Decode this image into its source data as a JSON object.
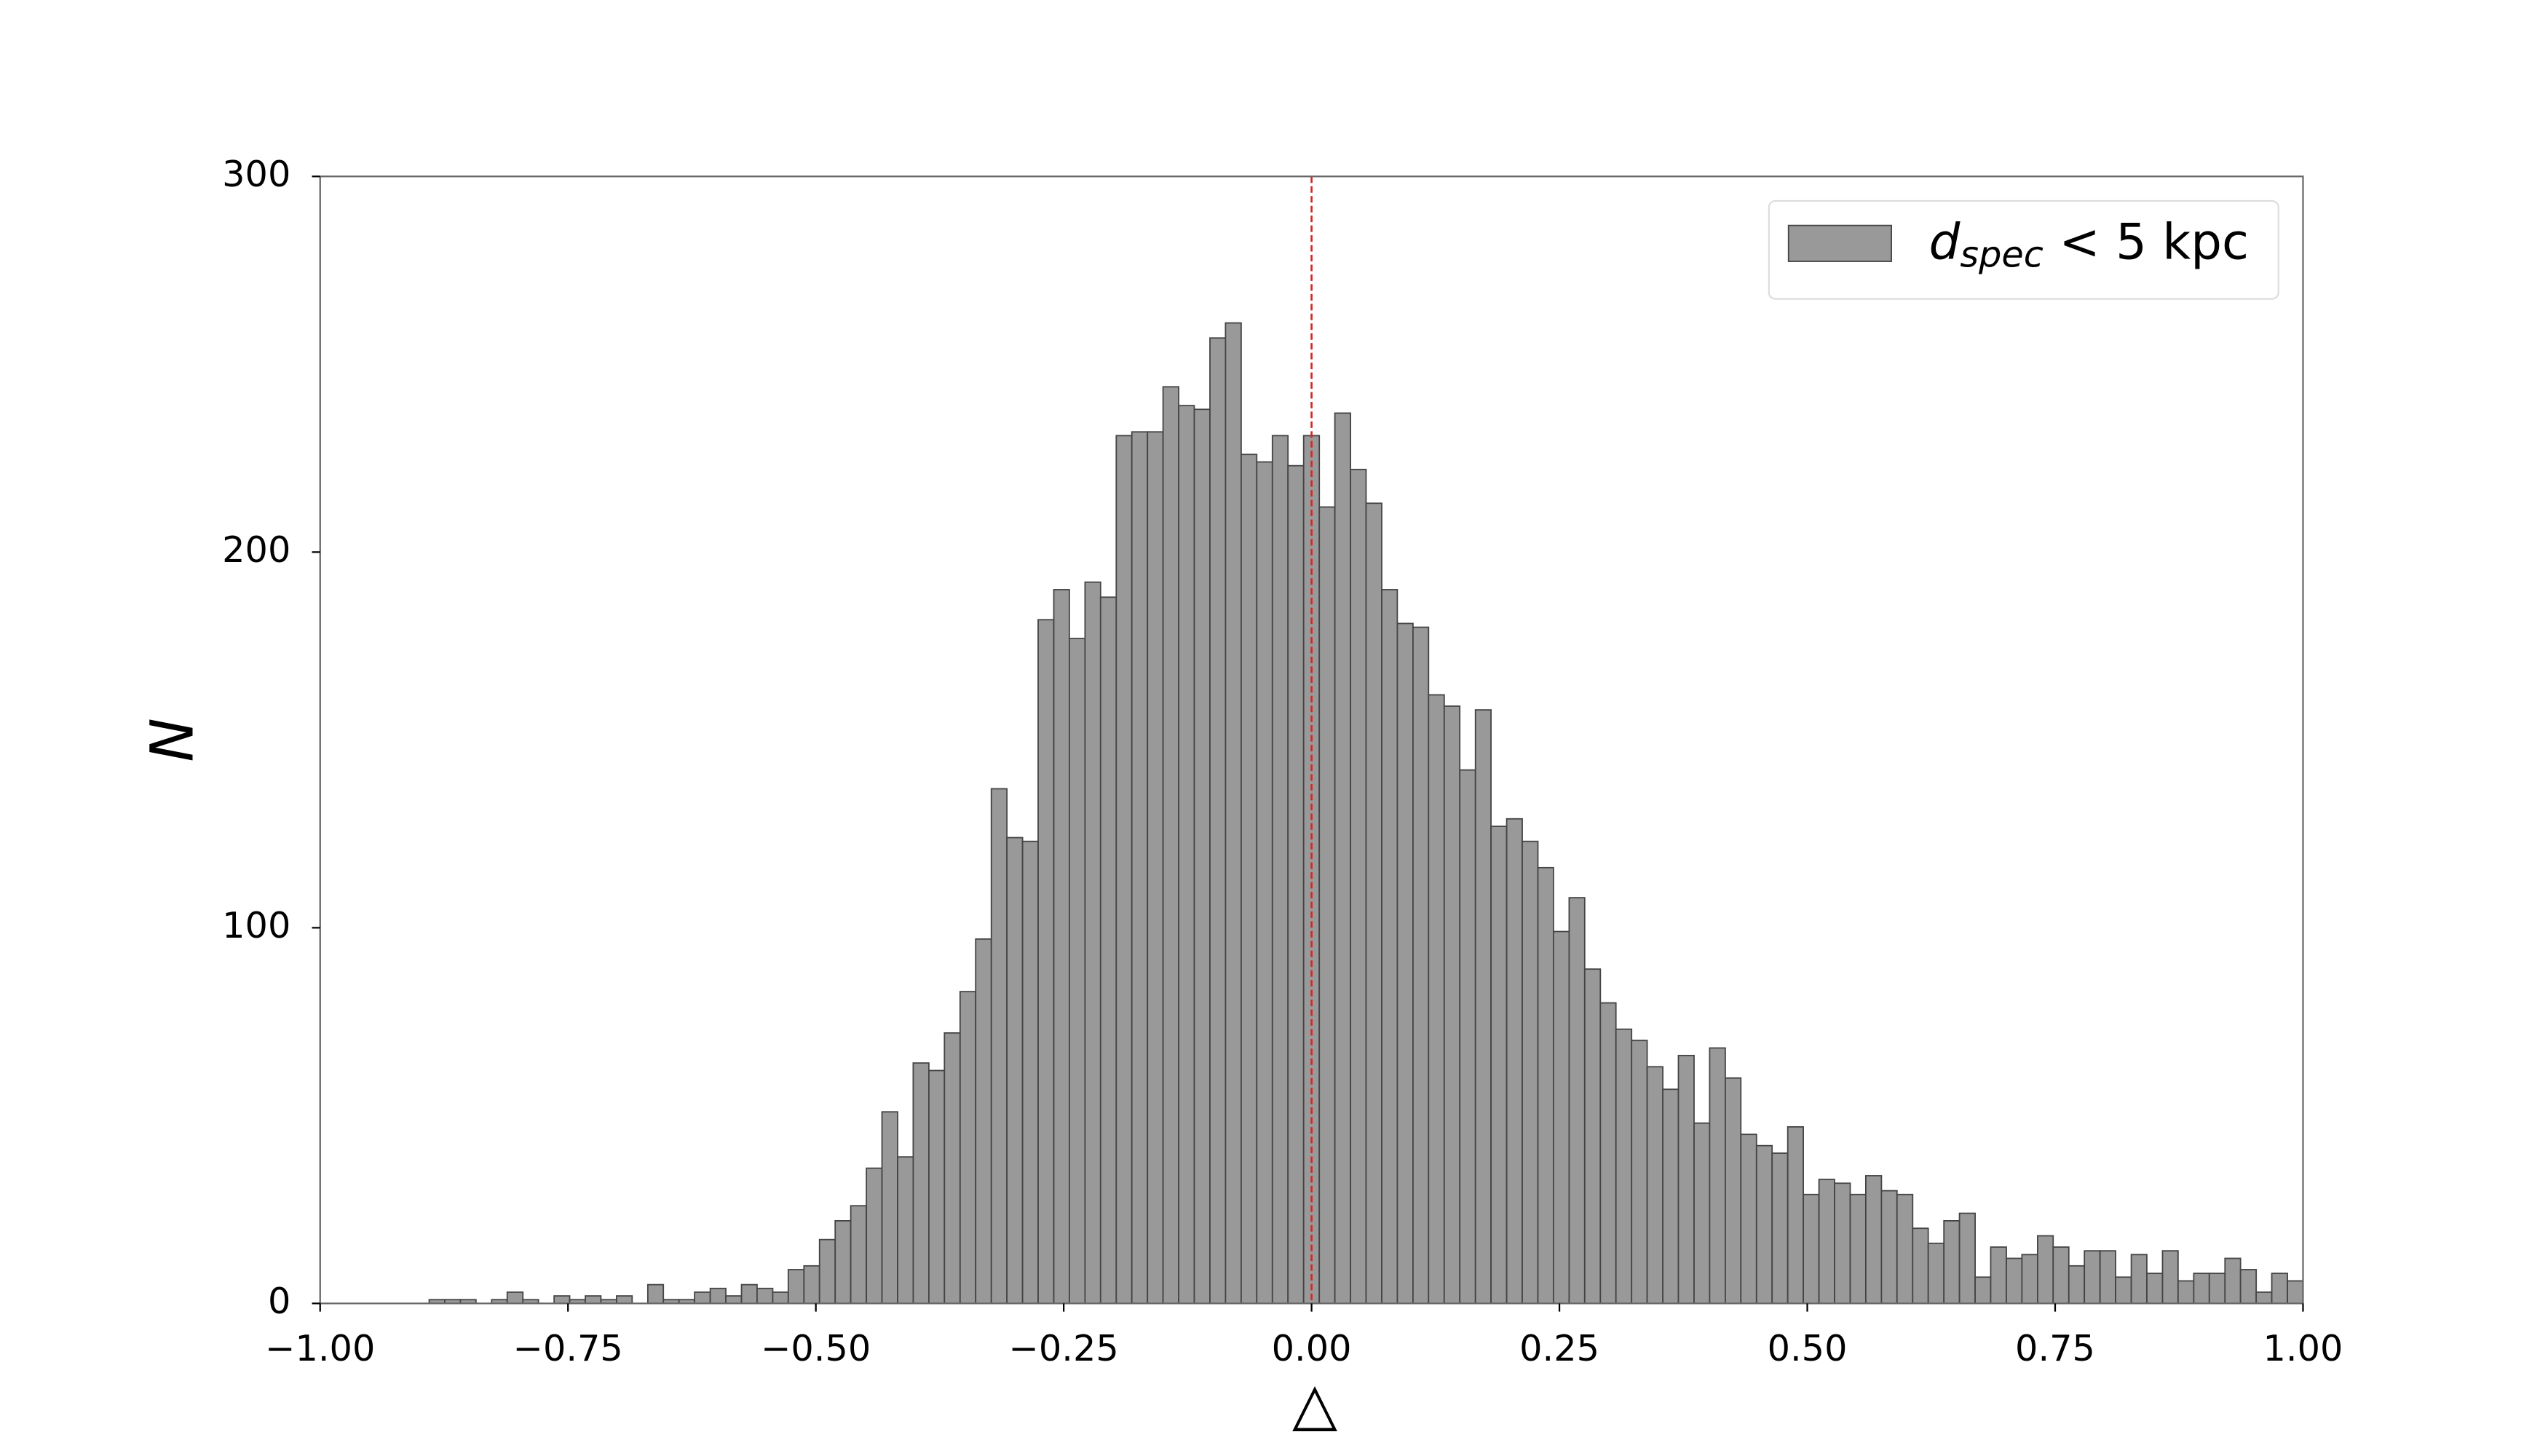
{
  "chart_data": {
    "type": "histogram",
    "x_label": "△",
    "y_label": "N",
    "bins": [
      -0.89,
      -0.8743,
      -0.8585,
      -0.8428,
      -0.827,
      -0.8113,
      -0.7955,
      -0.7798,
      -0.764,
      -0.7483,
      -0.7325,
      -0.7168,
      -0.701,
      -0.6853,
      -0.6695,
      -0.6538,
      -0.638,
      -0.6223,
      -0.6065,
      -0.5908,
      -0.575,
      -0.5593,
      -0.5435,
      -0.5278,
      -0.512,
      -0.4963,
      -0.4805,
      -0.4648,
      -0.449,
      -0.4333,
      -0.4175,
      -0.4018,
      -0.386,
      -0.3703,
      -0.3545,
      -0.3388,
      -0.323,
      -0.3073,
      -0.2915,
      -0.2758,
      -0.26,
      -0.2443,
      -0.2285,
      -0.2128,
      -0.197,
      -0.1813,
      -0.1655,
      -0.1498,
      -0.134,
      -0.1183,
      -0.1025,
      -0.0868,
      -0.071,
      -0.0553,
      -0.0395,
      -0.0238,
      -0.008,
      0.0078,
      0.0235,
      0.0393,
      0.055,
      0.0708,
      0.0865,
      0.1023,
      0.118,
      0.1338,
      0.1495,
      0.1653,
      0.181,
      0.1968,
      0.2125,
      0.2283,
      0.244,
      0.2598,
      0.2755,
      0.2913,
      0.307,
      0.3228,
      0.3385,
      0.3543,
      0.37,
      0.3858,
      0.4015,
      0.4173,
      0.433,
      0.4488,
      0.4645,
      0.4803,
      0.496,
      0.5118,
      0.5275,
      0.5433,
      0.559,
      0.5748,
      0.5905,
      0.6063,
      0.622,
      0.6378,
      0.6535,
      0.6693,
      0.685,
      0.7008,
      0.7165,
      0.7323,
      0.748,
      0.7638,
      0.7795,
      0.7953,
      0.811,
      0.8268,
      0.8425,
      0.8583,
      0.874,
      0.8898,
      0.9055,
      0.9213,
      0.937,
      0.9528,
      0.9685,
      0.9843,
      1.0
    ],
    "series": [
      {
        "name": "dspec < 5 kpc",
        "color": "#999999",
        "edgecolor": "#444444",
        "values": [
          1,
          1,
          1,
          0,
          1,
          3,
          1,
          0,
          2,
          1,
          2,
          1,
          2,
          0,
          5,
          1,
          1,
          3,
          4,
          2,
          5,
          4,
          3,
          9,
          10,
          17,
          22,
          26,
          36,
          51,
          39,
          64,
          62,
          72,
          83,
          97,
          137,
          124,
          123,
          182,
          190,
          177,
          192,
          188,
          231,
          232,
          232,
          244,
          239,
          238,
          257,
          261,
          226,
          224,
          231,
          223,
          231,
          212,
          237,
          222,
          213,
          190,
          181,
          180,
          162,
          159,
          142,
          158,
          127,
          129,
          123,
          116,
          99,
          108,
          89,
          80,
          73,
          70,
          63,
          57,
          66,
          48,
          68,
          60,
          45,
          42,
          40,
          47,
          29,
          33,
          32,
          29,
          34,
          30,
          29,
          20,
          16,
          22,
          24,
          7,
          15,
          12,
          13,
          18,
          15,
          10,
          14,
          14,
          7,
          13,
          8,
          14,
          6,
          8,
          8,
          12,
          9,
          3,
          8,
          6
        ]
      }
    ],
    "xlim": [
      -1,
      1
    ],
    "ylim": [
      0,
      300
    ],
    "xticks": [
      {
        "value": -1,
        "label": "−1.00"
      },
      {
        "value": -0.75,
        "label": "−0.75"
      },
      {
        "value": -0.5,
        "label": "−0.50"
      },
      {
        "value": -0.25,
        "label": "−0.25"
      },
      {
        "value": 0,
        "label": "0.00"
      },
      {
        "value": 0.25,
        "label": "0.25"
      },
      {
        "value": 0.5,
        "label": "0.50"
      },
      {
        "value": 0.75,
        "label": "0.75"
      },
      {
        "value": 1,
        "label": "1.00"
      }
    ],
    "yticks": [
      0,
      100,
      200,
      300
    ],
    "vline": {
      "x": 0,
      "color": "#d62728",
      "style": "dashed"
    },
    "legend": "upper right",
    "grid": false
  }
}
